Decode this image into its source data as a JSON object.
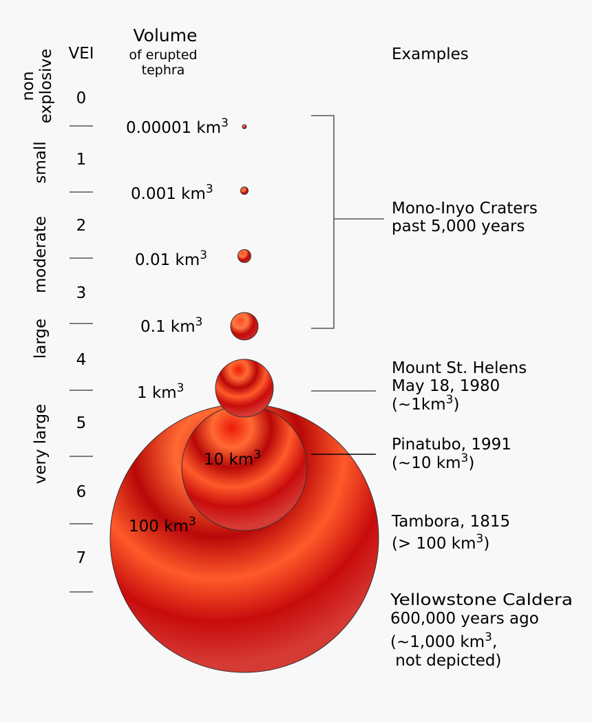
{
  "header": {
    "vei": "VEI",
    "volume": "Volume",
    "volume_sub1": "of erupted",
    "volume_sub2": "tephra",
    "examples": "Examples"
  },
  "categories": [
    {
      "lines": [
        "non",
        "explosive"
      ]
    },
    {
      "lines": [
        "small"
      ]
    },
    {
      "lines": [
        "moderate"
      ]
    },
    {
      "lines": [
        "large"
      ]
    },
    {
      "lines": [
        "very large"
      ]
    }
  ],
  "vei_numbers": [
    "0",
    "1",
    "2",
    "3",
    "4",
    "5",
    "6",
    "7"
  ],
  "volumes": [
    {
      "value": "0.00001 km",
      "sup": "3",
      "relative_volume": 1e-05
    },
    {
      "value": "0.001 km",
      "sup": "3",
      "relative_volume": 0.001
    },
    {
      "value": "0.01 km",
      "sup": "3",
      "relative_volume": 0.01
    },
    {
      "value": "0.1 km",
      "sup": "3",
      "relative_volume": 0.1
    },
    {
      "value": "1 km",
      "sup": "3",
      "relative_volume": 1
    },
    {
      "value": "10 km",
      "sup": "3",
      "relative_volume": 10
    },
    {
      "value": "100 km",
      "sup": "3",
      "relative_volume": 100
    }
  ],
  "examples": [
    {
      "line1": "Mono-Inyo Craters",
      "line2": "past 5,000 years"
    },
    {
      "line1": "Mount St. Helens",
      "line2": "May 18, 1980",
      "line3": "(~1km",
      "sup": "3",
      "line3_end": ")"
    },
    {
      "line1": "Pinatubo, 1991",
      "line2": "(~10 km",
      "sup": "3",
      "line2_end": ")"
    },
    {
      "line1": "Tambora, 1815",
      "line2": "(> 100 km",
      "sup": "3",
      "line2_end": ")"
    },
    {
      "line1": "Yellowstone Caldera",
      "line2": "600,000 years ago",
      "line3": "(~1,000 km",
      "sup": "3",
      "line3_end": ",",
      "line4": " not depicted)"
    }
  ],
  "colors": {
    "sphere_light": "#ff6a33",
    "sphere_mid": "#e8140a",
    "sphere_dark": "#b00808",
    "sphere_flat": "#d63a34",
    "line": "#333333"
  }
}
